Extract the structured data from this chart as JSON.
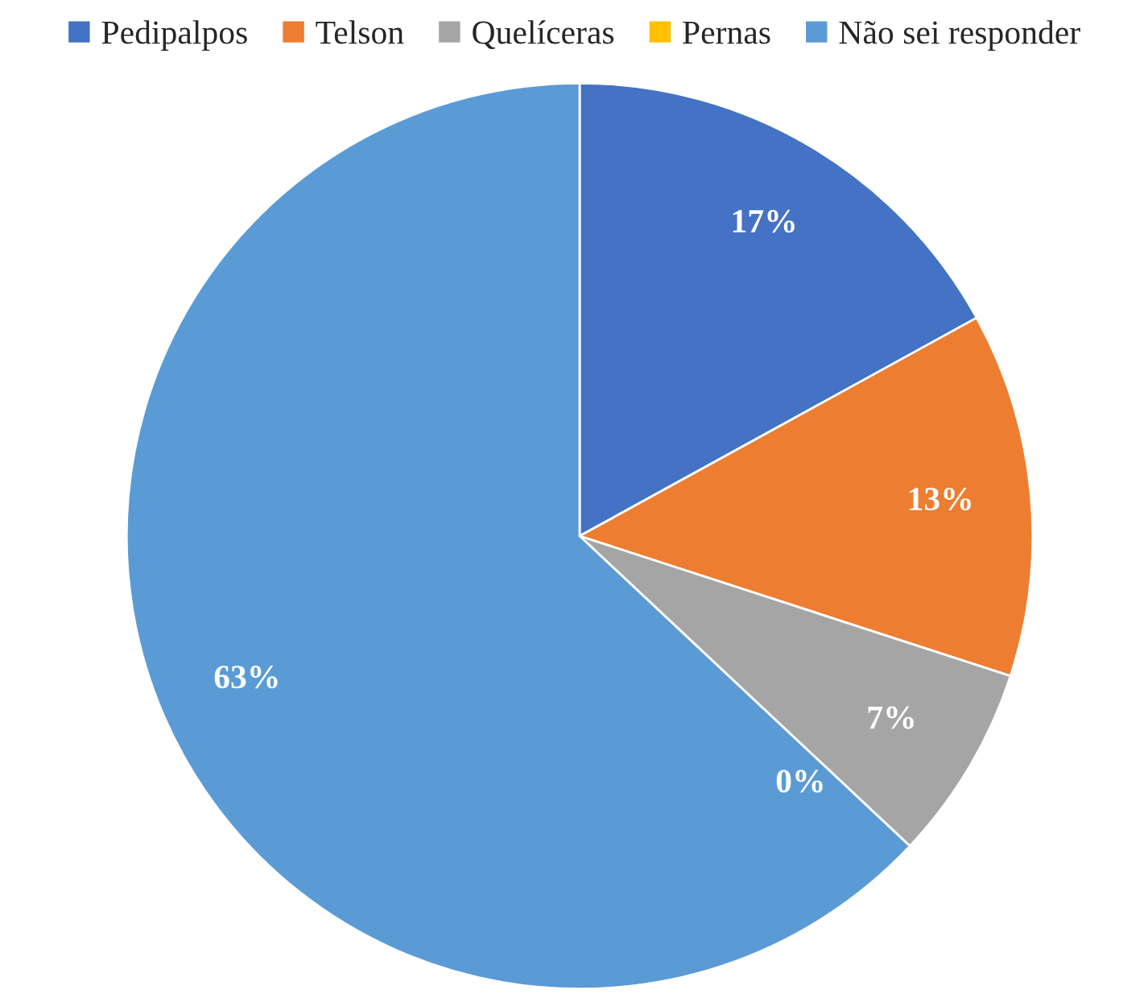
{
  "chart_data": {
    "type": "pie",
    "categories": [
      "Pedipalpos",
      "Telson",
      "Quelíceras",
      "Pernas",
      "Não sei responder"
    ],
    "values": [
      17,
      13,
      7,
      0,
      63
    ],
    "colors": [
      "#4472c4",
      "#ed7d31",
      "#a5a5a5",
      "#ffc000",
      "#5b9bd5"
    ],
    "value_labels": [
      "17%",
      "13%",
      "7%",
      "0%",
      "63%"
    ],
    "legend": "top"
  }
}
